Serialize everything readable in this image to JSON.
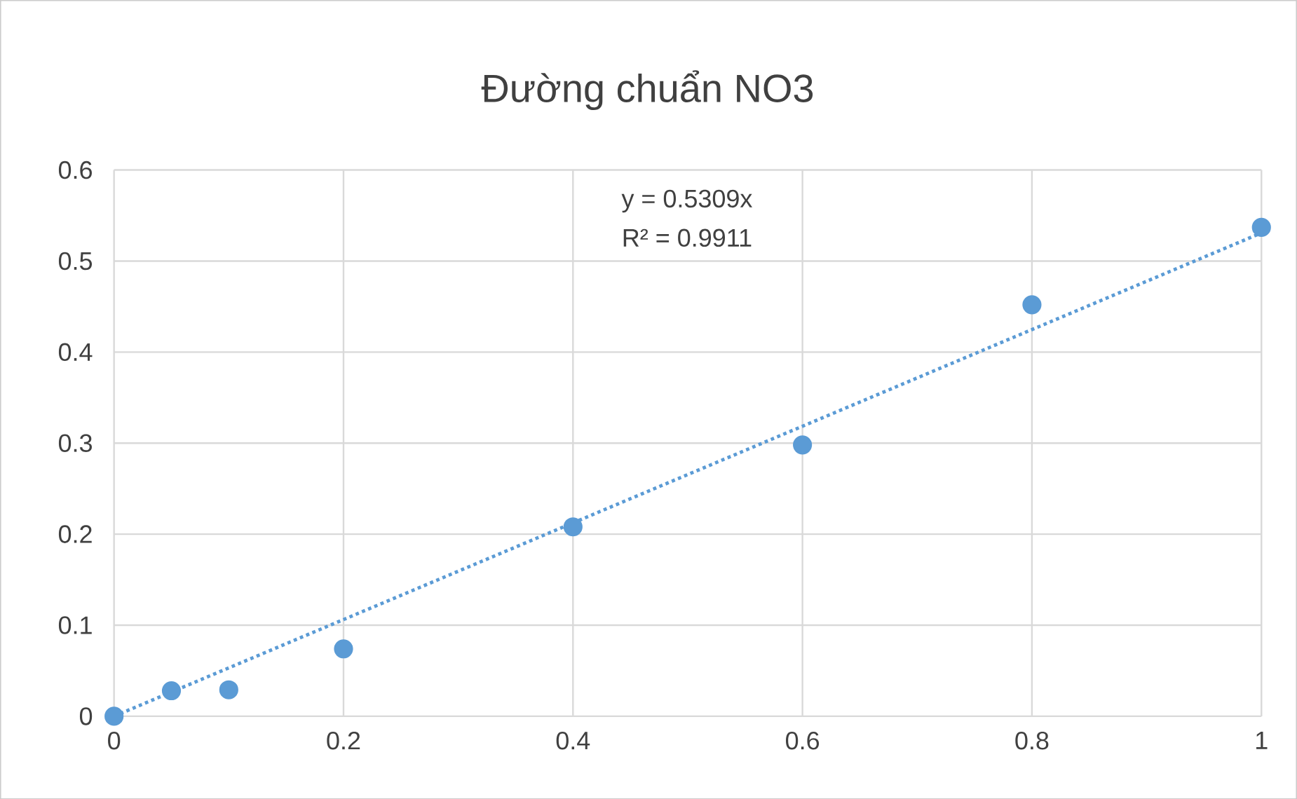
{
  "chart_data": {
    "type": "scatter",
    "title": "Đường chuẩn NO3",
    "x": [
      0,
      0.05,
      0.1,
      0.2,
      0.4,
      0.6,
      0.8,
      1
    ],
    "series": [
      {
        "color": "#5b9bd5",
        "marker": "circle",
        "values": [
          0,
          0.028,
          0.029,
          0.074,
          0.208,
          0.298,
          0.452,
          0.537
        ]
      },
      {
        "type": "line",
        "color": "#5b9bd5",
        "marker": "none",
        "line_style": "dotted",
        "x": [
          0,
          1
        ],
        "values": [
          0,
          0.5309
        ]
      }
    ],
    "annotations": [
      "y = 0.5309x",
      "R² = 0.9911"
    ],
    "xlim": [
      0,
      1
    ],
    "xticks": [
      0,
      0.2,
      0.4,
      0.6,
      0.8,
      1
    ],
    "ylim": [
      0,
      0.6
    ],
    "yticks": [
      0,
      0.1,
      0.2,
      0.3,
      0.4,
      0.5,
      0.6
    ],
    "grid": true
  }
}
